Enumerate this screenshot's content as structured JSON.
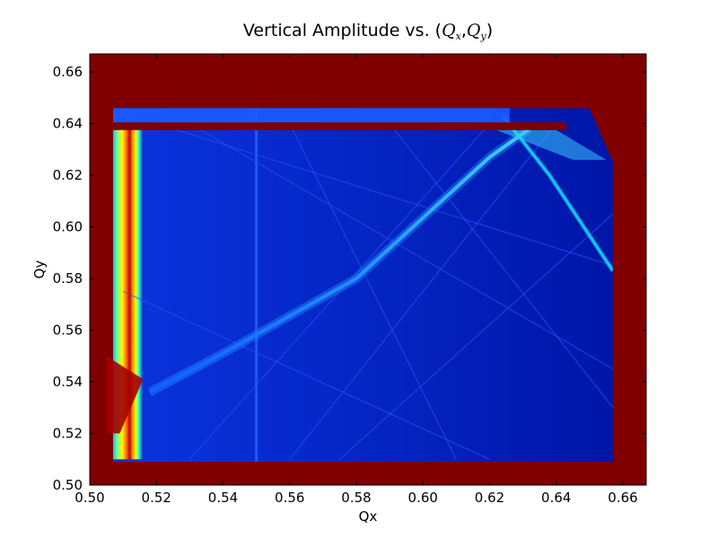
{
  "chart_data": {
    "type": "heatmap",
    "title": {
      "text": "Vertical Amplitude vs. ",
      "math_open": "(",
      "q": "Q",
      "sub_x": "x",
      "comma": ",",
      "sub_y": "y",
      "math_close": ")"
    },
    "xlabel": "Qx",
    "ylabel": "Qy",
    "xlim": [
      0.5,
      0.667
    ],
    "ylim": [
      0.5,
      0.667
    ],
    "xticks": [
      0.5,
      0.52,
      0.54,
      0.56,
      0.58,
      0.6,
      0.62,
      0.64,
      0.66
    ],
    "yticks": [
      0.5,
      0.52,
      0.54,
      0.56,
      0.58,
      0.6,
      0.62,
      0.64,
      0.66
    ],
    "xtick_labels": [
      "0.50",
      "0.52",
      "0.54",
      "0.56",
      "0.58",
      "0.60",
      "0.62",
      "0.64",
      "0.66"
    ],
    "ytick_labels": [
      "0.50",
      "0.52",
      "0.54",
      "0.56",
      "0.58",
      "0.60",
      "0.62",
      "0.64",
      "0.66"
    ],
    "colormap": "jet",
    "grid": false,
    "colors": {
      "saturated": "#800000",
      "background_low": "#00008f",
      "field": "#0a2fd8"
    },
    "features": {
      "saturated_regions": [
        {
          "x": [
            0.5,
            0.667
          ],
          "y": [
            0.646,
            0.667
          ]
        },
        {
          "x": [
            0.5,
            0.667
          ],
          "y": [
            0.5,
            0.509
          ]
        },
        {
          "x": [
            0.657,
            0.667
          ],
          "y": [
            0.5,
            0.667
          ]
        },
        {
          "x": [
            0.5,
            0.507
          ],
          "y": [
            0.5,
            0.667
          ]
        },
        {
          "x": [
            0.504,
            0.643
          ],
          "y": [
            0.6375,
            0.6405
          ]
        }
      ],
      "bright_band_qx": 0.5105,
      "diagonal_resonance": [
        {
          "qx": 0.518,
          "qy": 0.536
        },
        {
          "qx": 0.54,
          "qy": 0.551
        },
        {
          "qx": 0.58,
          "qy": 0.58
        },
        {
          "qx": 0.62,
          "qy": 0.627
        },
        {
          "qx": 0.632,
          "qy": 0.638
        }
      ],
      "vertical_line_qx": 0.55,
      "steep_resonance": [
        {
          "qx": 0.624,
          "qy": 0.643
        },
        {
          "qx": 0.638,
          "qy": 0.62
        },
        {
          "qx": 0.657,
          "qy": 0.583
        }
      ]
    }
  }
}
